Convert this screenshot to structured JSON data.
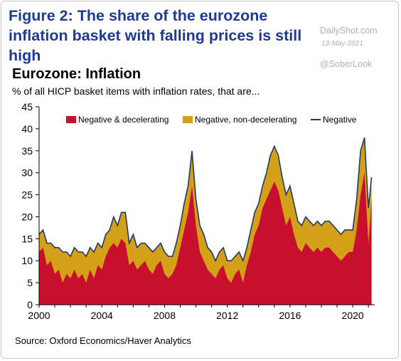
{
  "header": {
    "figure_title": "Figure 2: The share of the eurozone inflation basket with falling prices is still high",
    "watermark_site": "DailyShot.com",
    "watermark_date": "13-May-2021",
    "watermark_handle": "@SoberLook"
  },
  "footer": {
    "source": "Source: Oxford Economics/Haver Analytics"
  },
  "chart_data": {
    "type": "area",
    "title": "Eurozone: Inflation",
    "subtitle": "% of all HICP basket items with inflation rates, that are...",
    "xlabel": "",
    "ylabel": "",
    "xlim": [
      2000,
      2021.4
    ],
    "ylim": [
      0,
      45
    ],
    "x_ticks": [
      2000,
      2004,
      2008,
      2012,
      2016,
      2020
    ],
    "y_ticks": [
      0,
      5,
      10,
      15,
      20,
      25,
      30,
      35,
      40,
      45
    ],
    "grid": false,
    "legend_position": "top",
    "x": [
      2000.0,
      2000.25,
      2000.5,
      2000.75,
      2001.0,
      2001.25,
      2001.5,
      2001.75,
      2002.0,
      2002.25,
      2002.5,
      2002.75,
      2003.0,
      2003.25,
      2003.5,
      2003.75,
      2004.0,
      2004.25,
      2004.5,
      2004.75,
      2005.0,
      2005.25,
      2005.5,
      2005.75,
      2006.0,
      2006.25,
      2006.5,
      2006.75,
      2007.0,
      2007.25,
      2007.5,
      2007.75,
      2008.0,
      2008.25,
      2008.5,
      2008.75,
      2009.0,
      2009.25,
      2009.5,
      2009.75,
      2010.0,
      2010.25,
      2010.5,
      2010.75,
      2011.0,
      2011.25,
      2011.5,
      2011.75,
      2012.0,
      2012.25,
      2012.5,
      2012.75,
      2013.0,
      2013.25,
      2013.5,
      2013.75,
      2014.0,
      2014.25,
      2014.5,
      2014.75,
      2015.0,
      2015.25,
      2015.5,
      2015.75,
      2016.0,
      2016.25,
      2016.5,
      2016.75,
      2017.0,
      2017.25,
      2017.5,
      2017.75,
      2018.0,
      2018.25,
      2018.5,
      2018.75,
      2019.0,
      2019.25,
      2019.5,
      2019.75,
      2020.0,
      2020.25,
      2020.5,
      2020.75,
      2021.0,
      2021.2
    ],
    "series": [
      {
        "name": "Negative & decelerating",
        "color": "#c8102e",
        "values": [
          12,
          13,
          9,
          10,
          7,
          8,
          5,
          7,
          6,
          8,
          6,
          7,
          5,
          8,
          6,
          9,
          8,
          11,
          13,
          14,
          13,
          15,
          14,
          9,
          10,
          8,
          9,
          10,
          8,
          7,
          9,
          10,
          7,
          6,
          7,
          9,
          13,
          17,
          21,
          27,
          18,
          12,
          10,
          8,
          7,
          6,
          8,
          9,
          6,
          5,
          7,
          8,
          5,
          9,
          12,
          16,
          18,
          22,
          24,
          26,
          28,
          26,
          22,
          18,
          20,
          16,
          13,
          12,
          14,
          13,
          12,
          13,
          12,
          13,
          13,
          12,
          11,
          10,
          11,
          12,
          12,
          17,
          25,
          30,
          14,
          24
        ]
      },
      {
        "name": "Negative, non-decelerating",
        "color": "#d4a017",
        "values": [
          4,
          4,
          5,
          4,
          6,
          5,
          7,
          5,
          5,
          5,
          6,
          5,
          6,
          5,
          6,
          5,
          5,
          5,
          4,
          6,
          5,
          6,
          7,
          5,
          6,
          5,
          5,
          4,
          5,
          5,
          4,
          4,
          5,
          5,
          4,
          5,
          5,
          6,
          6,
          8,
          6,
          6,
          6,
          5,
          5,
          4,
          4,
          4,
          4,
          5,
          4,
          4,
          5,
          4,
          5,
          5,
          5,
          5,
          6,
          8,
          8,
          8,
          7,
          7,
          7,
          7,
          6,
          6,
          6,
          6,
          6,
          6,
          6,
          6,
          6,
          6,
          6,
          6,
          6,
          5,
          5,
          7,
          10,
          8,
          8,
          5
        ]
      },
      {
        "name": "Negative",
        "color": "#1f3a68",
        "values": [
          16,
          17,
          14,
          14,
          13,
          13,
          12,
          12,
          11,
          13,
          12,
          12,
          11,
          13,
          12,
          14,
          13,
          16,
          17,
          20,
          18,
          21,
          21,
          14,
          16,
          13,
          14,
          14,
          13,
          12,
          13,
          14,
          12,
          11,
          11,
          14,
          18,
          23,
          27,
          35,
          24,
          18,
          16,
          13,
          12,
          10,
          12,
          13,
          10,
          10,
          11,
          12,
          10,
          13,
          17,
          21,
          23,
          27,
          30,
          34,
          36,
          34,
          29,
          25,
          27,
          23,
          19,
          18,
          20,
          19,
          18,
          19,
          18,
          19,
          19,
          18,
          17,
          16,
          17,
          17,
          17,
          24,
          35,
          38,
          22,
          29
        ]
      }
    ]
  }
}
